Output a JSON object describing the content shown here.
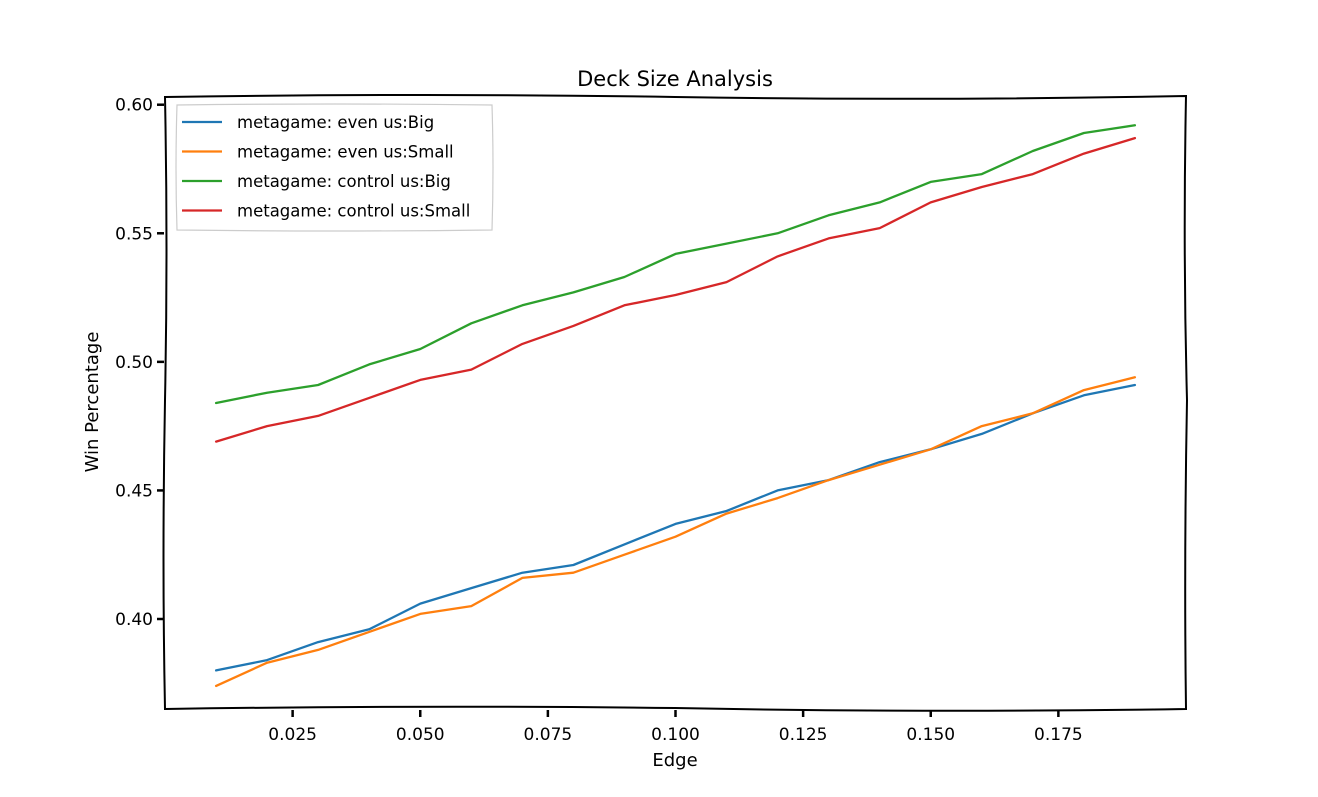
{
  "chart_data": {
    "type": "line",
    "title": "Deck Size Analysis",
    "xlabel": "Edge",
    "ylabel": "Win Percentage",
    "xlim": [
      0.0,
      0.2
    ],
    "ylim": [
      0.365,
      0.603
    ],
    "xticks": [
      0.025,
      0.05,
      0.075,
      0.1,
      0.125,
      0.15,
      0.175
    ],
    "xtick_labels": [
      "0.025",
      "0.050",
      "0.075",
      "0.100",
      "0.125",
      "0.150",
      "0.175"
    ],
    "yticks": [
      0.4,
      0.45,
      0.5,
      0.55,
      0.6
    ],
    "ytick_labels": [
      "0.40",
      "0.45",
      "0.50",
      "0.55",
      "0.60"
    ],
    "grid": false,
    "legend_position": "upper-left",
    "x": [
      0.01,
      0.02,
      0.03,
      0.04,
      0.05,
      0.06,
      0.07,
      0.08,
      0.09,
      0.1,
      0.11,
      0.12,
      0.13,
      0.14,
      0.15,
      0.16,
      0.17,
      0.18,
      0.19
    ],
    "series": [
      {
        "name": "metagame: even us:Big",
        "color": "#1f77b4",
        "values": [
          0.38,
          0.384,
          0.391,
          0.396,
          0.406,
          0.412,
          0.418,
          0.421,
          0.429,
          0.437,
          0.442,
          0.45,
          0.454,
          0.461,
          0.466,
          0.472,
          0.48,
          0.487,
          0.491
        ]
      },
      {
        "name": "metagame: even us:Small",
        "color": "#ff7f0e",
        "values": [
          0.374,
          0.383,
          0.388,
          0.395,
          0.402,
          0.405,
          0.416,
          0.418,
          0.425,
          0.432,
          0.441,
          0.447,
          0.454,
          0.46,
          0.466,
          0.475,
          0.48,
          0.489,
          0.494
        ]
      },
      {
        "name": "metagame: control us:Big",
        "color": "#2ca02c",
        "values": [
          0.484,
          0.488,
          0.491,
          0.499,
          0.505,
          0.515,
          0.522,
          0.527,
          0.533,
          0.542,
          0.546,
          0.55,
          0.557,
          0.562,
          0.57,
          0.573,
          0.582,
          0.589,
          0.592
        ]
      },
      {
        "name": "metagame: control us:Small",
        "color": "#d62728",
        "values": [
          0.469,
          0.475,
          0.479,
          0.486,
          0.493,
          0.497,
          0.507,
          0.514,
          0.522,
          0.526,
          0.531,
          0.541,
          0.548,
          0.552,
          0.562,
          0.568,
          0.573,
          0.581,
          0.587
        ]
      }
    ]
  }
}
